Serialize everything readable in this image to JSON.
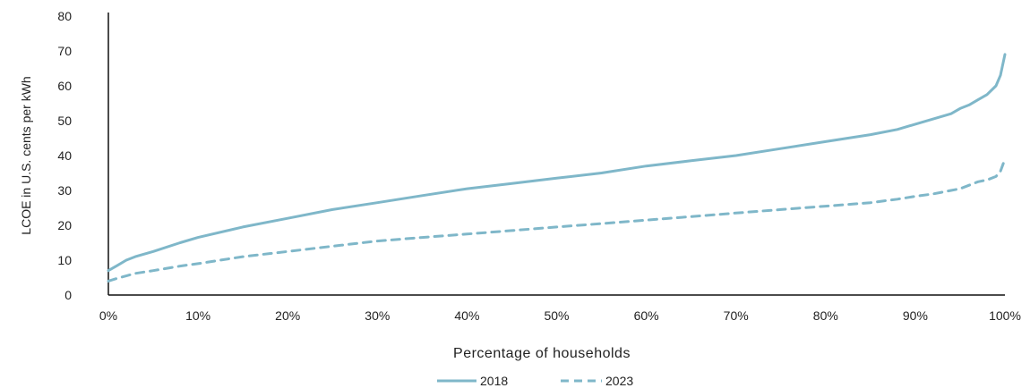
{
  "chart_data": {
    "type": "line",
    "xlabel": "Percentage of households",
    "ylabel": "LCOE in U.S. cents per kWh",
    "xlim": [
      0,
      100
    ],
    "ylim": [
      0,
      80
    ],
    "x_ticks": [
      "0%",
      "10%",
      "20%",
      "30%",
      "40%",
      "50%",
      "60%",
      "70%",
      "80%",
      "90%",
      "100%"
    ],
    "y_ticks": [
      "0",
      "10",
      "20",
      "30",
      "40",
      "50",
      "60",
      "70",
      "80"
    ],
    "legend_position": "bottom-center",
    "grid": false,
    "colors": {
      "2018": "#7fb7c9",
      "2023": "#7fb7c9",
      "axis": "#111111"
    },
    "series": [
      {
        "name": "2018",
        "style": "solid",
        "x": [
          0,
          1,
          2,
          3,
          5,
          8,
          10,
          15,
          20,
          25,
          30,
          35,
          40,
          45,
          50,
          55,
          60,
          65,
          70,
          75,
          80,
          85,
          88,
          90,
          92,
          94,
          95,
          96,
          97,
          98,
          99,
          99.5,
          100
        ],
        "y": [
          7,
          8.5,
          10,
          11,
          12.5,
          15,
          16.5,
          19.5,
          22,
          24.5,
          26.5,
          28.5,
          30.5,
          32,
          33.5,
          35,
          37,
          38.5,
          40,
          42,
          44,
          46,
          47.5,
          49,
          50.5,
          52,
          53.5,
          54.5,
          56,
          57.5,
          60,
          63,
          69
        ]
      },
      {
        "name": "2023",
        "style": "dashed",
        "x": [
          0,
          1,
          2,
          3,
          5,
          8,
          10,
          15,
          20,
          25,
          30,
          35,
          40,
          45,
          50,
          55,
          60,
          65,
          70,
          75,
          80,
          85,
          88,
          90,
          92,
          94,
          95,
          96,
          97,
          98,
          99,
          99.5,
          100
        ],
        "y": [
          4,
          4.8,
          5.5,
          6.2,
          7,
          8.3,
          9,
          11,
          12.5,
          14,
          15.5,
          16.5,
          17.5,
          18.5,
          19.5,
          20.5,
          21.5,
          22.5,
          23.5,
          24.5,
          25.5,
          26.5,
          27.5,
          28.3,
          29,
          30,
          30.5,
          31.5,
          32.5,
          33,
          34,
          35.5,
          39
        ]
      }
    ]
  }
}
